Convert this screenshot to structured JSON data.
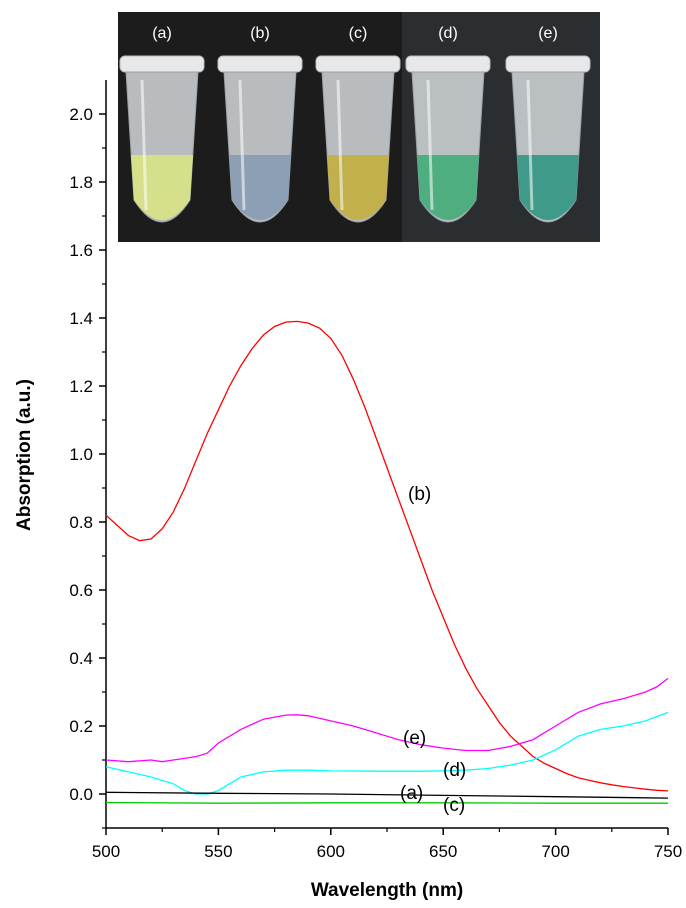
{
  "chart_data": {
    "type": "line",
    "xlabel": "Wavelength (nm)",
    "ylabel": "Absorption (a.u.)",
    "xlim": [
      500,
      750
    ],
    "ylim": [
      -0.1,
      2.1
    ],
    "xticks": [
      "500",
      "550",
      "600",
      "650",
      "700",
      "750"
    ],
    "yticks": [
      "0.0",
      "0.2",
      "0.4",
      "0.6",
      "0.8",
      "1.0",
      "1.2",
      "1.4",
      "1.6",
      "1.8",
      "2.0"
    ],
    "grid": false,
    "series": [
      {
        "name": "(b)",
        "color": "#ff0000",
        "x": [
          500,
          505,
          510,
          515,
          520,
          525,
          530,
          535,
          540,
          545,
          550,
          555,
          560,
          565,
          570,
          575,
          580,
          585,
          590,
          595,
          600,
          605,
          610,
          615,
          620,
          625,
          630,
          635,
          640,
          645,
          650,
          655,
          660,
          665,
          670,
          675,
          680,
          685,
          690,
          695,
          700,
          705,
          710,
          715,
          720,
          725,
          730,
          735,
          740,
          745,
          750
        ],
        "y": [
          0.82,
          0.79,
          0.76,
          0.745,
          0.75,
          0.78,
          0.83,
          0.9,
          0.98,
          1.06,
          1.13,
          1.2,
          1.26,
          1.31,
          1.35,
          1.375,
          1.388,
          1.39,
          1.385,
          1.37,
          1.34,
          1.29,
          1.22,
          1.14,
          1.05,
          0.96,
          0.87,
          0.78,
          0.69,
          0.6,
          0.52,
          0.44,
          0.37,
          0.31,
          0.26,
          0.21,
          0.17,
          0.14,
          0.11,
          0.09,
          0.075,
          0.06,
          0.048,
          0.04,
          0.033,
          0.027,
          0.022,
          0.018,
          0.014,
          0.011,
          0.009
        ]
      },
      {
        "name": "(e)",
        "color": "#ff00ff",
        "x": [
          500,
          510,
          520,
          525,
          530,
          540,
          545,
          550,
          560,
          570,
          580,
          585,
          590,
          600,
          610,
          620,
          630,
          640,
          650,
          660,
          670,
          680,
          690,
          700,
          710,
          720,
          730,
          740,
          745,
          750
        ],
        "y": [
          0.1,
          0.095,
          0.1,
          0.095,
          0.1,
          0.11,
          0.12,
          0.15,
          0.19,
          0.22,
          0.232,
          0.233,
          0.23,
          0.215,
          0.2,
          0.18,
          0.16,
          0.145,
          0.135,
          0.128,
          0.128,
          0.14,
          0.16,
          0.2,
          0.24,
          0.265,
          0.28,
          0.3,
          0.315,
          0.34
        ]
      },
      {
        "name": "(d)",
        "color": "#00ffff",
        "x": [
          500,
          510,
          520,
          530,
          535,
          540,
          545,
          550,
          555,
          560,
          570,
          580,
          590,
          600,
          620,
          640,
          650,
          660,
          670,
          680,
          690,
          700,
          710,
          720,
          730,
          740,
          750
        ],
        "y": [
          0.08,
          0.065,
          0.05,
          0.03,
          0.01,
          0.0,
          0.0,
          0.01,
          0.03,
          0.05,
          0.065,
          0.07,
          0.07,
          0.068,
          0.067,
          0.067,
          0.068,
          0.07,
          0.075,
          0.085,
          0.1,
          0.13,
          0.17,
          0.19,
          0.2,
          0.215,
          0.24
        ]
      },
      {
        "name": "(a)",
        "color": "#000000",
        "x": [
          500,
          550,
          600,
          650,
          700,
          750
        ],
        "y": [
          0.005,
          0.002,
          0.0,
          -0.004,
          -0.008,
          -0.012
        ]
      },
      {
        "name": "(c)",
        "color": "#00cc00",
        "x": [
          500,
          550,
          600,
          650,
          700,
          750
        ],
        "y": [
          -0.025,
          -0.027,
          -0.026,
          -0.026,
          -0.027,
          -0.027
        ]
      }
    ],
    "annotations": {
      "b": "(b)",
      "e": "(e)",
      "d": "(d)",
      "a": "(a)",
      "c": "(c)"
    }
  },
  "inset_photo": {
    "labels": [
      "(a)",
      "(b)",
      "(c)",
      "(d)",
      "(e)"
    ],
    "liquid_colors": [
      "#d6e08a",
      "#8c9fb4",
      "#c2b04c",
      "#4fae80",
      "#3f9a8a"
    ],
    "background": "#1c1c1c"
  }
}
